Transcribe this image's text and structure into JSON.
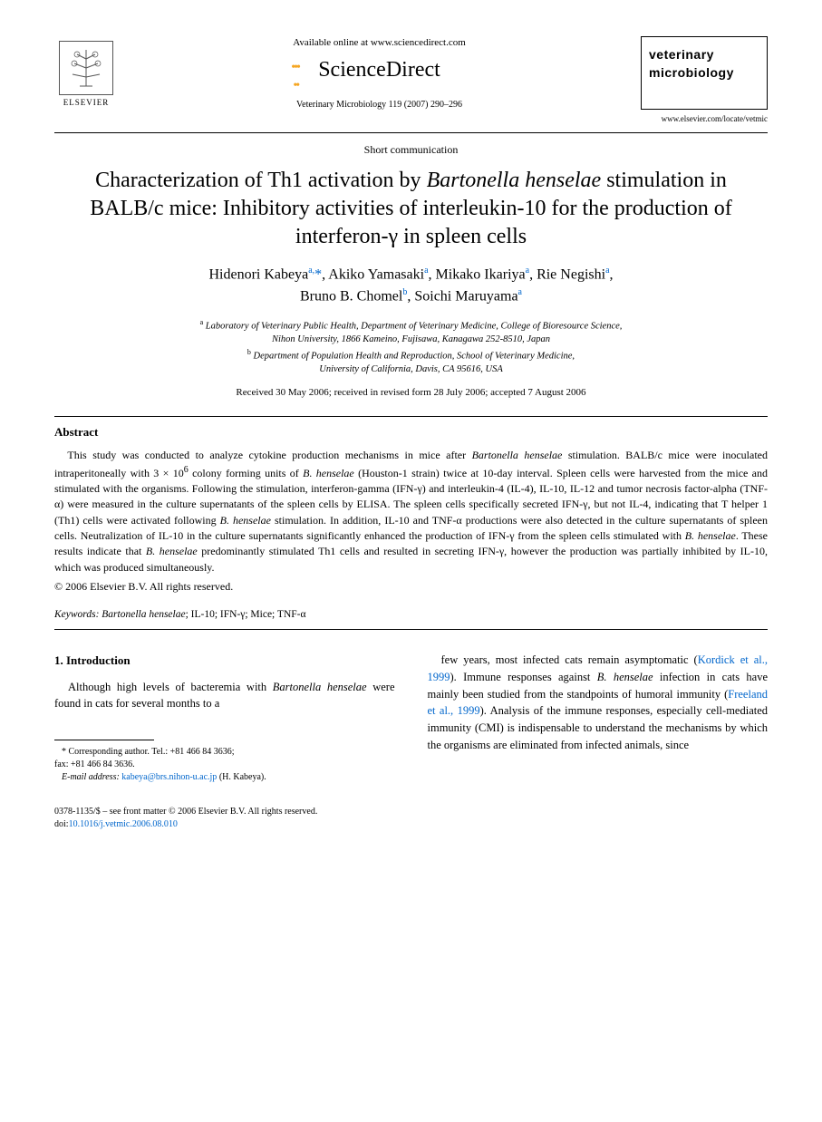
{
  "header": {
    "elsevier_label": "ELSEVIER",
    "available_online": "Available online at www.sciencedirect.com",
    "sciencedirect": "ScienceDirect",
    "journal_ref": "Veterinary Microbiology 119 (2007) 290–296",
    "journal_box_line1": "veterinary",
    "journal_box_line2": "microbiology",
    "journal_url": "www.elsevier.com/locate/vetmic"
  },
  "article": {
    "type": "Short communication",
    "title_part1": "Characterization of Th1 activation by ",
    "title_italic1": "Bartonella henselae",
    "title_part2": " stimulation in BALB/c mice: Inhibitory activities of interleukin-10 for the production of interferon-γ in spleen cells",
    "authors_html": "Hidenori Kabeya<sup>a,</sup><span class='star'>*</span>, Akiko Yamasaki<sup>a</sup>, Mikako Ikariya<sup>a</sup>, Rie Negishi<sup>a</sup>,<br>Bruno B. Chomel<sup>b</sup>, Soichi Maruyama<sup>a</sup>",
    "affiliations_html": "<sup>a</sup> Laboratory of Veterinary Public Health, Department of Veterinary Medicine, College of Bioresource Science,<br>Nihon University, 1866 Kameino, Fujisawa, Kanagawa 252-8510, Japan<br><sup>b</sup> Department of Population Health and Reproduction, School of Veterinary Medicine,<br>University of California, Davis, CA 95616, USA",
    "dates": "Received 30 May 2006; received in revised form 28 July 2006; accepted 7 August 2006"
  },
  "abstract": {
    "heading": "Abstract",
    "body_html": "This study was conducted to analyze cytokine production mechanisms in mice after <span class='italic'>Bartonella henselae</span> stimulation. BALB/c mice were inoculated intraperitoneally with 3 × 10<sup>6</sup> colony forming units of <span class='italic'>B. henselae</span> (Houston-1 strain) twice at 10-day interval. Spleen cells were harvested from the mice and stimulated with the organisms. Following the stimulation, interferon-gamma (IFN-γ) and interleukin-4 (IL-4), IL-10, IL-12 and tumor necrosis factor-alpha (TNF-α) were measured in the culture supernatants of the spleen cells by ELISA. The spleen cells specifically secreted IFN-γ, but not IL-4, indicating that T helper 1 (Th1) cells were activated following <span class='italic'>B. henselae</span> stimulation. In addition, IL-10 and TNF-α productions were also detected in the culture supernatants of spleen cells. Neutralization of IL-10 in the culture supernatants significantly enhanced the production of IFN-γ from the spleen cells stimulated with <span class='italic'>B. henselae</span>. These results indicate that <span class='italic'>B. henselae</span> predominantly stimulated Th1 cells and resulted in secreting IFN-γ, however the production was partially inhibited by IL-10, which was produced simultaneously.",
    "copyright": "© 2006 Elsevier B.V. All rights reserved."
  },
  "keywords": {
    "label": "Keywords:",
    "list_html": " <span class='italic'>Bartonella henselae</span>; IL-10; IFN-γ; Mice; TNF-α"
  },
  "intro": {
    "heading": "1. Introduction",
    "col1_html": "Although high levels of bacteremia with <span class='italic'>Bartonella henselae</span> were found in cats for several months to a",
    "col2_html": "few years, most infected cats remain asymptomatic (<span class='link'>Kordick et al., 1999</span>). Immune responses against <span class='italic'>B. henselae</span> infection in cats have mainly been studied from the standpoints of humoral immunity (<span class='link'>Freeland et al., 1999</span>). Analysis of the immune responses, especially cell-mediated immunity (CMI) is indispensable to understand the mechanisms by which the organisms are eliminated from infected animals, since"
  },
  "footnote": {
    "corr_html": "* Corresponding author. Tel.: +81 466 84 3636;<br>fax: +81 466 84 3636.",
    "email_label": "E-mail address:",
    "email": "kabeya@brs.nihon-u.ac.jp",
    "email_suffix": " (H. Kabeya)."
  },
  "footer": {
    "line1": "0378-1135/$ – see front matter © 2006 Elsevier B.V. All rights reserved.",
    "doi_label": "doi:",
    "doi": "10.1016/j.vetmic.2006.08.010"
  },
  "colors": {
    "link": "#0066cc",
    "text": "#000000",
    "bg": "#ffffff"
  }
}
